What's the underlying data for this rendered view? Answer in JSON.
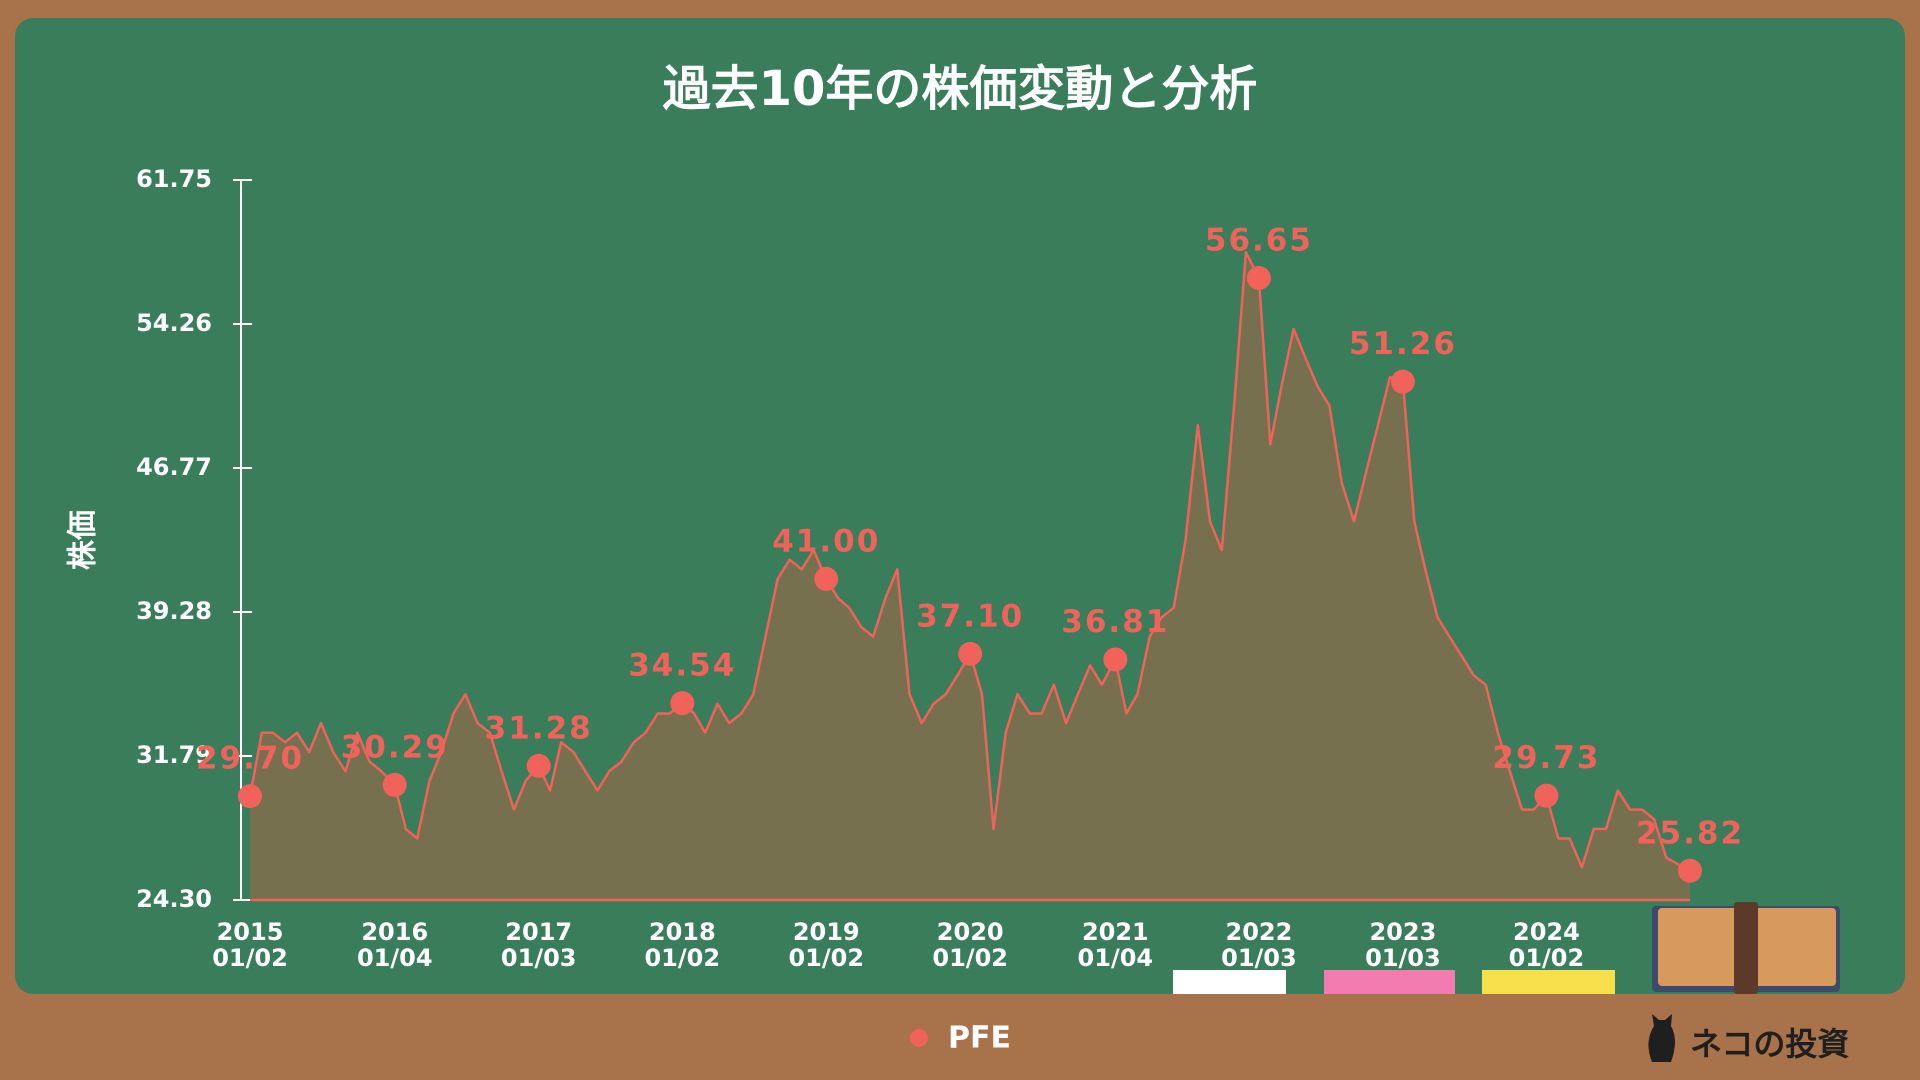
{
  "chart_data": {
    "type": "line",
    "title": "過去10年の株価変動と分析",
    "y_label": "株価",
    "xlim": [
      "2015-01-02",
      "2024-12-31"
    ],
    "ylim": [
      24.3,
      61.75
    ],
    "yticks": [
      {
        "value": 24.3,
        "label": "24.30"
      },
      31.79,
      39.28,
      46.77,
      54.26,
      61.75
    ],
    "xticks": [
      {
        "value": "2015-01-02",
        "label": "2015 01/02"
      },
      {
        "value": "2016-01-04",
        "label": "2016 01/04"
      },
      {
        "value": "2017-01-03",
        "label": "2017 01/03"
      },
      {
        "value": "2018-01-02",
        "label": "2018 01/02"
      },
      {
        "value": "2019-01-02",
        "label": "2019 01/02"
      },
      {
        "value": "2020-01-02",
        "label": "2020 01/02"
      },
      {
        "value": "2021-01-04",
        "label": "2021 01/04"
      },
      {
        "value": "2022-01-03",
        "label": "2022 01/03"
      },
      {
        "value": "2023-01-03",
        "label": "2023 01/03"
      },
      {
        "value": "2024-01-02",
        "label": "2024 01/02"
      }
    ],
    "series": [
      {
        "name": "PFE",
        "color": "#f0625a",
        "x": [
          "2015-01-02",
          "2015-02-01",
          "2015-03-01",
          "2015-04-01",
          "2015-05-01",
          "2015-06-01",
          "2015-07-01",
          "2015-08-01",
          "2015-09-01",
          "2015-10-01",
          "2015-11-01",
          "2015-12-01",
          "2016-01-04",
          "2016-02-01",
          "2016-03-01",
          "2016-04-01",
          "2016-05-01",
          "2016-06-01",
          "2016-07-01",
          "2016-08-01",
          "2016-09-01",
          "2016-10-01",
          "2016-11-01",
          "2016-12-01",
          "2017-01-03",
          "2017-02-01",
          "2017-03-01",
          "2017-04-01",
          "2017-05-01",
          "2017-06-01",
          "2017-07-01",
          "2017-08-01",
          "2017-09-01",
          "2017-10-01",
          "2017-11-01",
          "2017-12-01",
          "2018-01-02",
          "2018-02-01",
          "2018-03-01",
          "2018-04-01",
          "2018-05-01",
          "2018-06-01",
          "2018-07-01",
          "2018-08-01",
          "2018-09-01",
          "2018-10-01",
          "2018-11-01",
          "2018-12-01",
          "2019-01-02",
          "2019-02-01",
          "2019-03-01",
          "2019-04-01",
          "2019-05-01",
          "2019-06-01",
          "2019-07-01",
          "2019-08-01",
          "2019-09-01",
          "2019-10-01",
          "2019-11-01",
          "2019-12-01",
          "2020-01-02",
          "2020-02-01",
          "2020-03-01",
          "2020-04-01",
          "2020-05-01",
          "2020-06-01",
          "2020-07-01",
          "2020-08-01",
          "2020-09-01",
          "2020-10-01",
          "2020-11-01",
          "2020-12-01",
          "2021-01-04",
          "2021-02-01",
          "2021-03-01",
          "2021-04-01",
          "2021-05-01",
          "2021-06-01",
          "2021-07-01",
          "2021-08-01",
          "2021-09-01",
          "2021-10-01",
          "2021-11-01",
          "2021-12-01",
          "2022-01-03",
          "2022-02-01",
          "2022-03-01",
          "2022-04-01",
          "2022-05-01",
          "2022-06-01",
          "2022-07-01",
          "2022-08-01",
          "2022-09-01",
          "2022-10-01",
          "2022-11-01",
          "2022-12-01",
          "2023-01-03",
          "2023-02-01",
          "2023-03-01",
          "2023-04-01",
          "2023-05-01",
          "2023-06-01",
          "2023-07-01",
          "2023-08-01",
          "2023-09-01",
          "2023-10-01",
          "2023-11-01",
          "2023-12-01",
          "2024-01-02",
          "2024-02-01",
          "2024-03-01",
          "2024-04-01",
          "2024-05-01",
          "2024-06-01",
          "2024-07-01",
          "2024-08-01",
          "2024-09-01",
          "2024-10-01",
          "2024-11-01",
          "2024-12-31"
        ],
        "values": [
          29.7,
          33,
          33,
          32.5,
          33,
          32,
          33.5,
          32,
          31,
          33,
          31.5,
          31,
          30.29,
          28,
          27.5,
          30.5,
          32,
          34,
          35,
          33.5,
          33,
          31,
          29,
          30.5,
          31.28,
          30,
          32.5,
          32,
          31,
          30,
          31,
          31.5,
          32.5,
          33,
          34,
          34,
          34.54,
          34,
          33,
          34.5,
          33.5,
          34,
          35,
          38,
          41,
          42,
          41.5,
          42.5,
          41,
          40,
          39.5,
          38.5,
          38,
          40,
          41.5,
          35,
          33.5,
          34.5,
          35,
          36,
          37.1,
          35,
          28,
          33,
          35,
          34,
          34,
          35.5,
          33.5,
          35,
          36.5,
          35.5,
          36.81,
          34,
          35,
          38,
          39,
          39.5,
          43,
          49,
          44,
          42.5,
          50,
          58,
          56.65,
          48,
          51,
          54,
          52.5,
          51,
          50,
          46,
          44,
          46.5,
          49,
          51.5,
          51.26,
          44,
          41.5,
          39,
          38,
          37,
          36,
          35.5,
          33,
          31,
          29,
          29,
          29.73,
          27.5,
          27.5,
          26,
          28,
          28,
          30,
          29,
          29,
          28.5,
          26.5,
          25.82
        ]
      }
    ],
    "highlights": {
      "x": [
        "2015-01-02",
        "2016-01-04",
        "2017-01-03",
        "2018-01-02",
        "2019-01-02",
        "2020-01-02",
        "2021-01-04",
        "2022-01-03",
        "2023-01-03",
        "2024-01-02",
        "2024-12-31"
      ],
      "values": [
        29.7,
        30.29,
        31.28,
        34.54,
        41,
        37.1,
        36.81,
        56.65,
        51.26,
        29.73,
        25.82
      ],
      "value_labels": [
        "29.70",
        "30.29",
        "31.28",
        "34.54",
        "41.00",
        "37.10",
        "36.81",
        "56.65",
        "51.26",
        "29.73",
        "25.82"
      ]
    }
  },
  "brand": "ネコの投資"
}
